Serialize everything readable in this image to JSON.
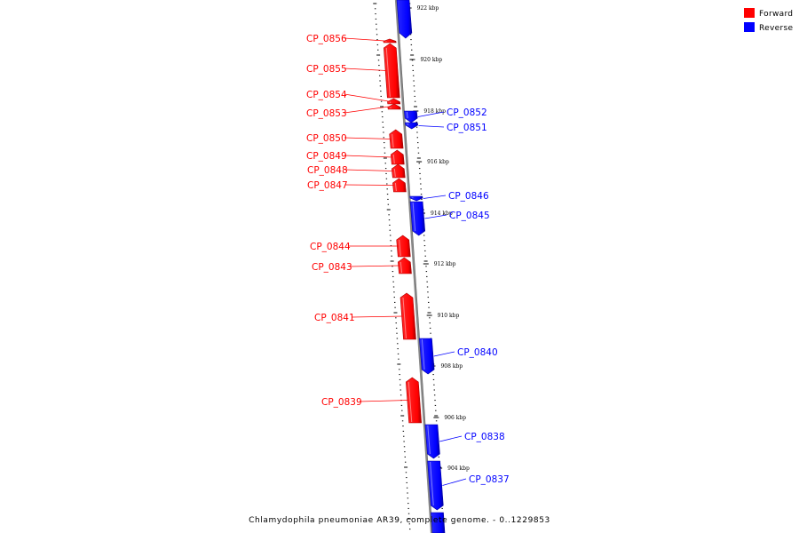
{
  "caption": "Chlamydophila pneumoniae AR39, complete genome. - 0..1229853",
  "legend": {
    "forward_label": "Forward",
    "reverse_label": "Reverse",
    "forward_color": "#ff0000",
    "reverse_color": "#0000ff"
  },
  "colors": {
    "forward": "#ff0000",
    "forward_dark": "#b00000",
    "reverse": "#0000ff",
    "reverse_dark": "#0000a8",
    "axis": "#888888",
    "ticks": "#000000"
  },
  "axis": {
    "unit": "kbp",
    "tick_labels": [
      "922 kbp",
      "920 kbp",
      "918 kbp",
      "916 kbp",
      "914 kbp",
      "912 kbp",
      "910 kbp",
      "908 kbp",
      "906 kbp",
      "904 kbp"
    ]
  },
  "genes": [
    {
      "name": "CP_0856",
      "strand": "forward"
    },
    {
      "name": "CP_0855",
      "strand": "forward"
    },
    {
      "name": "CP_0854",
      "strand": "forward"
    },
    {
      "name": "CP_0853",
      "strand": "forward"
    },
    {
      "name": "CP_0852",
      "strand": "reverse"
    },
    {
      "name": "CP_0851",
      "strand": "reverse"
    },
    {
      "name": "CP_0850",
      "strand": "forward"
    },
    {
      "name": "CP_0849",
      "strand": "forward"
    },
    {
      "name": "CP_0848",
      "strand": "forward"
    },
    {
      "name": "CP_0847",
      "strand": "forward"
    },
    {
      "name": "CP_0846",
      "strand": "reverse"
    },
    {
      "name": "CP_0845",
      "strand": "reverse"
    },
    {
      "name": "CP_0844",
      "strand": "forward"
    },
    {
      "name": "CP_0843",
      "strand": "forward"
    },
    {
      "name": "CP_0841",
      "strand": "forward"
    },
    {
      "name": "CP_0840",
      "strand": "reverse"
    },
    {
      "name": "CP_0839",
      "strand": "forward"
    },
    {
      "name": "CP_0838",
      "strand": "reverse"
    },
    {
      "name": "CP_0837",
      "strand": "reverse"
    }
  ]
}
